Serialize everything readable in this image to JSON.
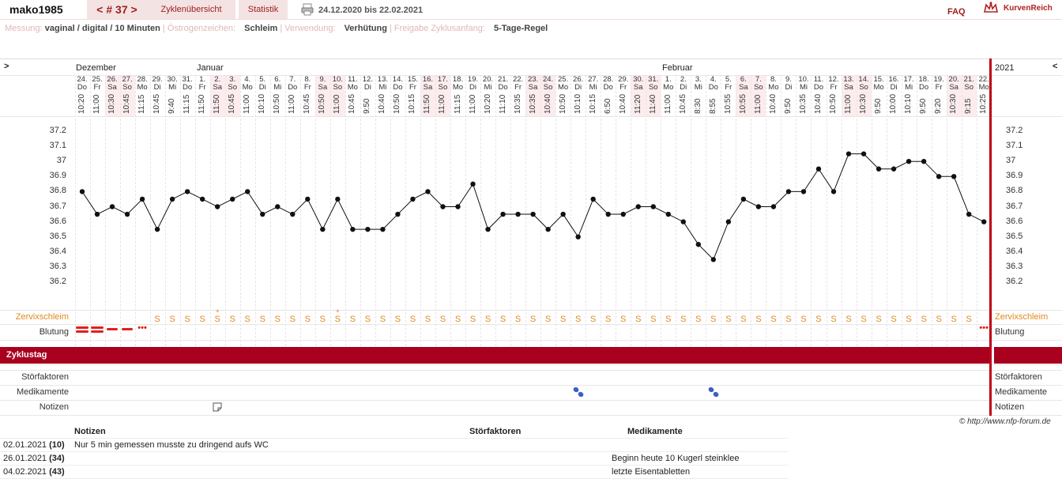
{
  "header": {
    "user": "mako1985",
    "cycle_nav": "< # 37 >",
    "tab_overview": "Zyklenübersicht",
    "tab_stats": "Statistik",
    "date_range": "24.12.2020 bis 22.02.2021",
    "faq": "FAQ",
    "brand": "KurvenReich"
  },
  "info": {
    "messung_label": "Messung:",
    "messung_value": "vaginal / digital / 10 Minuten",
    "oestrogen_label": "| Östrogenzeichen:",
    "oestrogen_value": "Schleim",
    "verwendung_label": "| Verwendung:",
    "verwendung_value": "Verhütung",
    "freigabe_label": "| Freigabe Zyklusanfang:",
    "freigabe_value": "5-Tage-Regel"
  },
  "months": {
    "m1": "Dezember",
    "m2": "Januar",
    "m3": "Februar",
    "year": "2021",
    "expand_left": ">",
    "expand_right": "<"
  },
  "rows": {
    "zervix": "Zervixschleim",
    "blutung": "Blutung",
    "zyklustag": "Zyklustag",
    "stoer": "Störfaktoren",
    "medi": "Medikamente",
    "notizen": "Notizen"
  },
  "copyright": "© http://www.nfp-forum.de",
  "notes_table": {
    "headers": {
      "notizen": "Notizen",
      "stoer": "Störfaktoren",
      "medi": "Medikamente"
    },
    "rows": [
      {
        "date": "02.01.2021",
        "day": "(10)",
        "note": "Nur 5 min gemessen musste zu dringend aufs WC",
        "stoer": "",
        "medi": ""
      },
      {
        "date": "26.01.2021",
        "day": "(34)",
        "note": "",
        "stoer": "",
        "medi": "Beginn heute 10 Kugerl steinklee"
      },
      {
        "date": "04.02.2021",
        "day": "(43)",
        "note": "",
        "stoer": "",
        "medi": "letzte Eisentabletten"
      }
    ]
  },
  "chart_data": {
    "type": "line",
    "ylim": [
      36.2,
      37.2
    ],
    "yticks": [
      "37.2",
      "37.1",
      "37",
      "36.9",
      "36.8",
      "36.7",
      "36.6",
      "36.5",
      "36.4",
      "36.3",
      "36.2"
    ],
    "days": [
      {
        "d": "24.",
        "w": "Do",
        "t": "10:20"
      },
      {
        "d": "25.",
        "w": "Fr",
        "t": "11:00"
      },
      {
        "d": "26.",
        "w": "Sa",
        "t": "10:30"
      },
      {
        "d": "27.",
        "w": "So",
        "t": "10:45"
      },
      {
        "d": "28.",
        "w": "Mo",
        "t": "11:15"
      },
      {
        "d": "29.",
        "w": "Di",
        "t": "10:45"
      },
      {
        "d": "30.",
        "w": "Mi",
        "t": "9:40"
      },
      {
        "d": "31.",
        "w": "Do",
        "t": "11:15"
      },
      {
        "d": "1.",
        "w": "Fr",
        "t": "11:50"
      },
      {
        "d": "2.",
        "w": "Sa",
        "t": "11:50"
      },
      {
        "d": "3.",
        "w": "So",
        "t": "10:45"
      },
      {
        "d": "4.",
        "w": "Mo",
        "t": "11:00"
      },
      {
        "d": "5.",
        "w": "Di",
        "t": "10:10"
      },
      {
        "d": "6.",
        "w": "Mi",
        "t": "10:50"
      },
      {
        "d": "7.",
        "w": "Do",
        "t": "11:00"
      },
      {
        "d": "8.",
        "w": "Fr",
        "t": "10:45"
      },
      {
        "d": "9.",
        "w": "Sa",
        "t": "10:50"
      },
      {
        "d": "10.",
        "w": "So",
        "t": "11:00"
      },
      {
        "d": "11.",
        "w": "Mo",
        "t": "10:45"
      },
      {
        "d": "12.",
        "w": "Di",
        "t": "9:50"
      },
      {
        "d": "13.",
        "w": "Mi",
        "t": "10:40"
      },
      {
        "d": "14.",
        "w": "Do",
        "t": "10:50"
      },
      {
        "d": "15.",
        "w": "Fr",
        "t": "10:15"
      },
      {
        "d": "16.",
        "w": "Sa",
        "t": "11:50"
      },
      {
        "d": "17.",
        "w": "So",
        "t": "11:00"
      },
      {
        "d": "18.",
        "w": "Mo",
        "t": "11:15"
      },
      {
        "d": "19.",
        "w": "Di",
        "t": "11:00"
      },
      {
        "d": "20.",
        "w": "Mi",
        "t": "10:20"
      },
      {
        "d": "21.",
        "w": "Do",
        "t": "11:10"
      },
      {
        "d": "22.",
        "w": "Fr",
        "t": "10:35"
      },
      {
        "d": "23.",
        "w": "Sa",
        "t": "10:35"
      },
      {
        "d": "24.",
        "w": "So",
        "t": "10:40"
      },
      {
        "d": "25.",
        "w": "Mo",
        "t": "10:50"
      },
      {
        "d": "26.",
        "w": "Di",
        "t": "10:10"
      },
      {
        "d": "27.",
        "w": "Mi",
        "t": "10:15"
      },
      {
        "d": "28.",
        "w": "Do",
        "t": "6:50"
      },
      {
        "d": "29.",
        "w": "Fr",
        "t": "10:40"
      },
      {
        "d": "30.",
        "w": "Sa",
        "t": "11:20"
      },
      {
        "d": "31.",
        "w": "So",
        "t": "11:40"
      },
      {
        "d": "1.",
        "w": "Mo",
        "t": "11:00"
      },
      {
        "d": "2.",
        "w": "Di",
        "t": "10:45"
      },
      {
        "d": "3.",
        "w": "Mi",
        "t": "8:30"
      },
      {
        "d": "4.",
        "w": "Do",
        "t": "8:55"
      },
      {
        "d": "5.",
        "w": "Fr",
        "t": "10:55"
      },
      {
        "d": "6.",
        "w": "Sa",
        "t": "10:55"
      },
      {
        "d": "7.",
        "w": "So",
        "t": "11:00"
      },
      {
        "d": "8.",
        "w": "Mo",
        "t": "10:40"
      },
      {
        "d": "9.",
        "w": "Di",
        "t": "9:50"
      },
      {
        "d": "10.",
        "w": "Mi",
        "t": "10:35"
      },
      {
        "d": "11.",
        "w": "Do",
        "t": "10:40"
      },
      {
        "d": "12.",
        "w": "Fr",
        "t": "10:50"
      },
      {
        "d": "13.",
        "w": "Sa",
        "t": "11:00"
      },
      {
        "d": "14.",
        "w": "So",
        "t": "10:30"
      },
      {
        "d": "15.",
        "w": "Mo",
        "t": "9:50"
      },
      {
        "d": "16.",
        "w": "Di",
        "t": "10:00"
      },
      {
        "d": "17.",
        "w": "Mi",
        "t": "10:10"
      },
      {
        "d": "18.",
        "w": "Do",
        "t": "9:50"
      },
      {
        "d": "19.",
        "w": "Fr",
        "t": "9:20"
      },
      {
        "d": "20.",
        "w": "Sa",
        "t": "10:30"
      },
      {
        "d": "21.",
        "w": "So",
        "t": "9:15"
      },
      {
        "d": "22.",
        "w": "Mo",
        "t": "10:25"
      }
    ],
    "weekend": [
      3,
      4,
      10,
      11,
      17,
      18,
      24,
      25,
      31,
      32,
      38,
      39,
      45,
      46,
      52,
      53,
      59,
      60
    ],
    "temps": [
      36.8,
      36.65,
      36.7,
      36.65,
      36.75,
      36.55,
      36.75,
      36.8,
      36.75,
      36.7,
      36.75,
      36.8,
      36.65,
      36.7,
      36.65,
      36.75,
      36.55,
      36.75,
      36.55,
      36.55,
      36.55,
      36.65,
      36.75,
      36.8,
      36.7,
      36.7,
      36.85,
      36.55,
      36.65,
      36.65,
      36.65,
      36.55,
      36.65,
      36.5,
      36.75,
      36.65,
      36.65,
      36.7,
      36.7,
      36.65,
      36.6,
      36.45,
      36.35,
      36.6,
      36.75,
      36.7,
      36.7,
      36.8,
      36.8,
      36.95,
      36.8,
      37.05,
      37.05,
      36.95,
      36.95,
      37.0,
      37.0,
      36.9,
      36.9,
      36.65,
      36.6
    ],
    "zervix": [
      "",
      "",
      "",
      "",
      "",
      "S",
      "S",
      "S",
      "S",
      "S+",
      "S",
      "S",
      "S",
      "S",
      "S",
      "S",
      "S",
      "S+",
      "S",
      "S",
      "S",
      "S",
      "S",
      "S",
      "S",
      "S",
      "S",
      "S",
      "S",
      "S",
      "S",
      "S",
      "S",
      "S",
      "S",
      "S",
      "S",
      "S",
      "S",
      "S",
      "S",
      "S",
      "S",
      "S",
      "S",
      "S",
      "S",
      "S",
      "S",
      "S",
      "S",
      "S",
      "S",
      "S",
      "S",
      "S",
      "S",
      "S",
      "S",
      "S",
      ""
    ],
    "blutung": [
      "stark",
      "stark",
      "mittel",
      "mittel",
      "leicht",
      "",
      "",
      "",
      "",
      "",
      "",
      "",
      "",
      "",
      "",
      "",
      "",
      "",
      "",
      "",
      "",
      "",
      "",
      "",
      "",
      "",
      "",
      "",
      "",
      "",
      "",
      "",
      "",
      "",
      "",
      "",
      "",
      "",
      "",
      "",
      "",
      "",
      "",
      "",
      "",
      "",
      "",
      "",
      "",
      "",
      "",
      "",
      "",
      "",
      "",
      "",
      "",
      "",
      "",
      "",
      "leicht"
    ],
    "medikamente_days": [
      34,
      43
    ],
    "notiz_days": [
      10
    ]
  }
}
